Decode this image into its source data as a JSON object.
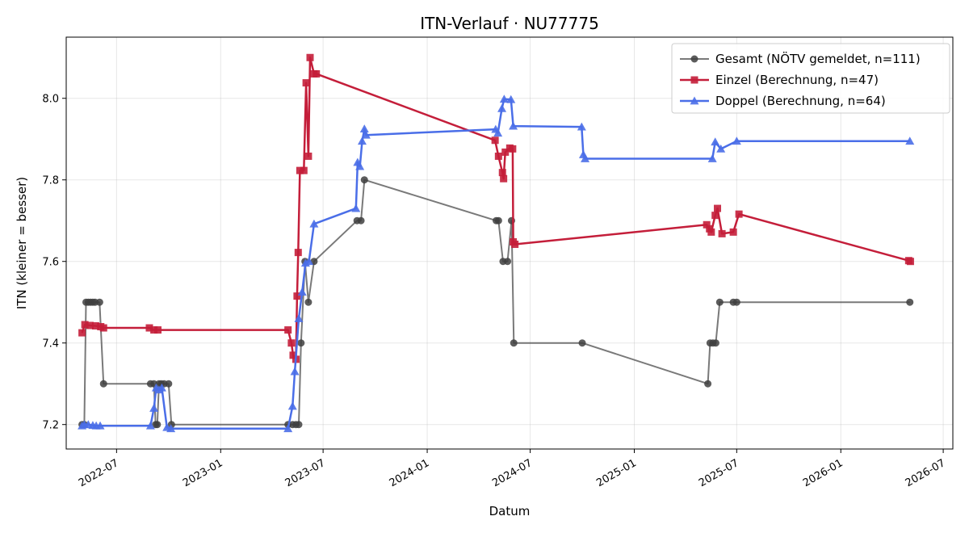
{
  "chart_data": {
    "type": "line",
    "title": "ITN-Verlauf · NU77775",
    "xlabel": "Datum",
    "ylabel": "ITN  (kleiner = besser)",
    "xlim": [
      "2022-04-03",
      "2026-07-18"
    ],
    "ylim": [
      7.14,
      8.15
    ],
    "x_ticks": [
      "2022-07-01",
      "2023-01-01",
      "2023-07-01",
      "2024-01-01",
      "2024-07-01",
      "2025-01-01",
      "2025-07-01",
      "2026-01-01",
      "2026-07-01"
    ],
    "x_tick_labels": [
      "2022-07",
      "2023-01",
      "2023-07",
      "2024-01",
      "2024-07",
      "2025-01",
      "2025-07",
      "2026-01",
      "2026-07"
    ],
    "y_ticks": [
      7.2,
      7.4,
      7.6,
      7.8,
      8.0
    ],
    "y_tick_labels": [
      "7.2",
      "7.4",
      "7.6",
      "7.8",
      "8.0"
    ],
    "grid": true,
    "legend_position": "top-right",
    "series": [
      {
        "name": "Gesamt (NÖTV gemeldet, n=111)",
        "color": "#404040",
        "marker": "circle",
        "points": [
          [
            "2022-05-01",
            7.2
          ],
          [
            "2022-05-05",
            7.2
          ],
          [
            "2022-05-08",
            7.5
          ],
          [
            "2022-05-12",
            7.5
          ],
          [
            "2022-05-16",
            7.5
          ],
          [
            "2022-05-20",
            7.5
          ],
          [
            "2022-05-24",
            7.5
          ],
          [
            "2022-06-01",
            7.5
          ],
          [
            "2022-06-08",
            7.3
          ],
          [
            "2022-08-30",
            7.3
          ],
          [
            "2022-09-05",
            7.3
          ],
          [
            "2022-09-08",
            7.2
          ],
          [
            "2022-09-11",
            7.2
          ],
          [
            "2022-09-14",
            7.3
          ],
          [
            "2022-09-18",
            7.3
          ],
          [
            "2022-09-23",
            7.3
          ],
          [
            "2022-10-01",
            7.3
          ],
          [
            "2022-10-06",
            7.2
          ],
          [
            "2023-04-30",
            7.2
          ],
          [
            "2023-05-08",
            7.2
          ],
          [
            "2023-05-14",
            7.2
          ],
          [
            "2023-05-19",
            7.2
          ],
          [
            "2023-05-23",
            7.4
          ],
          [
            "2023-05-30",
            7.6
          ],
          [
            "2023-06-05",
            7.5
          ],
          [
            "2023-06-15",
            7.6
          ],
          [
            "2023-08-30",
            7.7
          ],
          [
            "2023-09-06",
            7.7
          ],
          [
            "2023-09-12",
            7.8
          ],
          [
            "2024-05-02",
            7.7
          ],
          [
            "2024-05-06",
            7.7
          ],
          [
            "2024-05-14",
            7.6
          ],
          [
            "2024-05-22",
            7.6
          ],
          [
            "2024-05-29",
            7.7
          ],
          [
            "2024-06-02",
            7.4
          ],
          [
            "2024-10-01",
            7.4
          ],
          [
            "2025-05-11",
            7.3
          ],
          [
            "2025-05-15",
            7.4
          ],
          [
            "2025-05-20",
            7.4
          ],
          [
            "2025-05-25",
            7.4
          ],
          [
            "2025-06-01",
            7.5
          ],
          [
            "2025-06-25",
            7.5
          ],
          [
            "2025-07-01",
            7.5
          ],
          [
            "2026-05-03",
            7.5
          ]
        ]
      },
      {
        "name": "Einzel (Berechnung, n=47)",
        "color": "#c41e3a",
        "marker": "square",
        "points": [
          [
            "2022-05-01",
            7.425
          ],
          [
            "2022-05-06",
            7.445
          ],
          [
            "2022-05-15",
            7.443
          ],
          [
            "2022-05-25",
            7.442
          ],
          [
            "2022-06-03",
            7.44
          ],
          [
            "2022-06-08",
            7.437
          ],
          [
            "2022-08-28",
            7.437
          ],
          [
            "2022-09-05",
            7.432
          ],
          [
            "2022-09-12",
            7.432
          ],
          [
            "2023-04-30",
            7.432
          ],
          [
            "2023-05-06",
            7.4
          ],
          [
            "2023-05-09",
            7.37
          ],
          [
            "2023-05-14",
            7.36
          ],
          [
            "2023-05-16",
            7.515
          ],
          [
            "2023-05-18",
            7.622
          ],
          [
            "2023-05-21",
            7.823
          ],
          [
            "2023-05-28",
            7.823
          ],
          [
            "2023-06-01",
            8.038
          ],
          [
            "2023-06-05",
            7.858
          ],
          [
            "2023-06-08",
            8.1
          ],
          [
            "2023-06-15",
            8.06
          ],
          [
            "2023-06-19",
            8.06
          ],
          [
            "2024-04-30",
            7.897
          ],
          [
            "2024-05-06",
            7.858
          ],
          [
            "2024-05-13",
            7.818
          ],
          [
            "2024-05-15",
            7.803
          ],
          [
            "2024-05-18",
            7.868
          ],
          [
            "2024-05-26",
            7.878
          ],
          [
            "2024-05-31",
            7.876
          ],
          [
            "2024-06-01",
            7.648
          ],
          [
            "2024-06-04",
            7.642
          ],
          [
            "2025-05-09",
            7.69
          ],
          [
            "2025-05-14",
            7.68
          ],
          [
            "2025-05-17",
            7.672
          ],
          [
            "2025-05-24",
            7.713
          ],
          [
            "2025-05-28",
            7.73
          ],
          [
            "2025-06-05",
            7.668
          ],
          [
            "2025-06-25",
            7.672
          ],
          [
            "2025-07-05",
            7.716
          ],
          [
            "2026-05-01",
            7.602
          ],
          [
            "2026-05-04",
            7.6
          ]
        ]
      },
      {
        "name": "Doppel (Berechnung, n=64)",
        "color": "#4a6ee8",
        "marker": "triangle",
        "points": [
          [
            "2022-05-01",
            7.197
          ],
          [
            "2022-05-05",
            7.2
          ],
          [
            "2022-05-12",
            7.2
          ],
          [
            "2022-05-20",
            7.198
          ],
          [
            "2022-05-26",
            7.197
          ],
          [
            "2022-06-02",
            7.197
          ],
          [
            "2022-08-30",
            7.197
          ],
          [
            "2022-09-05",
            7.24
          ],
          [
            "2022-09-09",
            7.29
          ],
          [
            "2022-09-14",
            7.285
          ],
          [
            "2022-09-19",
            7.29
          ],
          [
            "2022-09-28",
            7.193
          ],
          [
            "2022-10-05",
            7.19
          ],
          [
            "2023-04-30",
            7.19
          ],
          [
            "2023-05-08",
            7.245
          ],
          [
            "2023-05-12",
            7.33
          ],
          [
            "2023-05-19",
            7.46
          ],
          [
            "2023-05-25",
            7.525
          ],
          [
            "2023-05-31",
            7.596
          ],
          [
            "2023-06-06",
            7.6
          ],
          [
            "2023-06-15",
            7.692
          ],
          [
            "2023-08-28",
            7.73
          ],
          [
            "2023-08-31",
            7.843
          ],
          [
            "2023-09-04",
            7.833
          ],
          [
            "2023-09-08",
            7.895
          ],
          [
            "2023-09-12",
            7.925
          ],
          [
            "2023-09-15",
            7.91
          ],
          [
            "2024-05-01",
            7.924
          ],
          [
            "2024-05-05",
            7.915
          ],
          [
            "2024-05-12",
            7.975
          ],
          [
            "2024-05-16",
            7.998
          ],
          [
            "2024-05-28",
            7.997
          ],
          [
            "2024-06-01",
            7.932
          ],
          [
            "2024-09-30",
            7.93
          ],
          [
            "2024-10-03",
            7.862
          ],
          [
            "2024-10-06",
            7.852
          ],
          [
            "2025-05-19",
            7.852
          ],
          [
            "2025-05-24",
            7.893
          ],
          [
            "2025-06-03",
            7.876
          ],
          [
            "2025-07-01",
            7.895
          ],
          [
            "2026-05-03",
            7.895
          ]
        ]
      }
    ]
  }
}
